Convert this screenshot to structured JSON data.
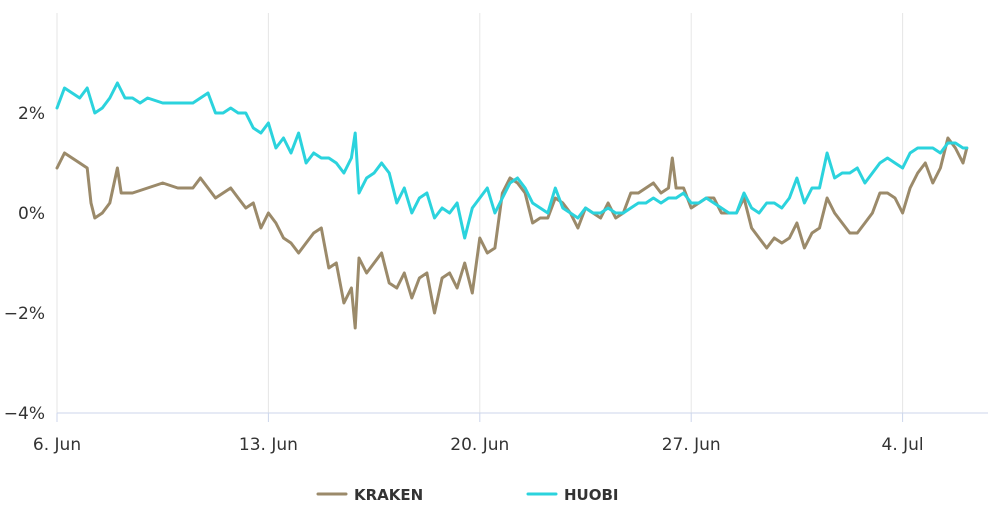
{
  "chart_data": {
    "type": "line",
    "title": "",
    "xlabel": "",
    "ylabel": "",
    "x_axis": {
      "range": [
        "2021-06-06",
        "2021-07-06"
      ],
      "ticks": [
        {
          "x": "2021-06-06",
          "label": "6. Jun"
        },
        {
          "x": "2021-06-13",
          "label": "13. Jun"
        },
        {
          "x": "2021-06-20",
          "label": "20. Jun"
        },
        {
          "x": "2021-06-27",
          "label": "27. Jun"
        },
        {
          "x": "2021-07-04",
          "label": "4. Jul"
        }
      ]
    },
    "y_axis": {
      "ylim": [
        -4,
        4
      ],
      "ticks": [
        {
          "value": -4,
          "label": "−4%"
        },
        {
          "value": -2,
          "label": "−2%"
        },
        {
          "value": 0,
          "label": "0%"
        },
        {
          "value": 2,
          "label": "2%"
        }
      ]
    },
    "grid": {
      "vertical": true,
      "horizontal": false
    },
    "legend": {
      "position": "bottom-center"
    },
    "series": [
      {
        "name": "KRAKEN",
        "color": "#9b8a6a",
        "points": [
          [
            "2021-06-06T00:00",
            0.9
          ],
          [
            "2021-06-06T06:00",
            1.2
          ],
          [
            "2021-06-06T12:00",
            1.1
          ],
          [
            "2021-06-06T18:00",
            1.0
          ],
          [
            "2021-06-07T00:00",
            0.9
          ],
          [
            "2021-06-07T03:00",
            0.2
          ],
          [
            "2021-06-07T06:00",
            -0.1
          ],
          [
            "2021-06-07T12:00",
            0.0
          ],
          [
            "2021-06-07T18:00",
            0.2
          ],
          [
            "2021-06-08T00:00",
            0.9
          ],
          [
            "2021-06-08T03:00",
            0.4
          ],
          [
            "2021-06-08T12:00",
            0.4
          ],
          [
            "2021-06-09T00:00",
            0.5
          ],
          [
            "2021-06-09T12:00",
            0.6
          ],
          [
            "2021-06-10T00:00",
            0.5
          ],
          [
            "2021-06-10T12:00",
            0.5
          ],
          [
            "2021-06-10T18:00",
            0.7
          ],
          [
            "2021-06-11T00:00",
            0.5
          ],
          [
            "2021-06-11T06:00",
            0.3
          ],
          [
            "2021-06-11T12:00",
            0.4
          ],
          [
            "2021-06-11T18:00",
            0.5
          ],
          [
            "2021-06-12T00:00",
            0.3
          ],
          [
            "2021-06-12T06:00",
            0.1
          ],
          [
            "2021-06-12T12:00",
            0.2
          ],
          [
            "2021-06-12T18:00",
            -0.3
          ],
          [
            "2021-06-13T00:00",
            0.0
          ],
          [
            "2021-06-13T06:00",
            -0.2
          ],
          [
            "2021-06-13T12:00",
            -0.5
          ],
          [
            "2021-06-13T18:00",
            -0.6
          ],
          [
            "2021-06-14T00:00",
            -0.8
          ],
          [
            "2021-06-14T06:00",
            -0.6
          ],
          [
            "2021-06-14T12:00",
            -0.4
          ],
          [
            "2021-06-14T18:00",
            -0.3
          ],
          [
            "2021-06-15T00:00",
            -1.1
          ],
          [
            "2021-06-15T06:00",
            -1.0
          ],
          [
            "2021-06-15T12:00",
            -1.8
          ],
          [
            "2021-06-15T18:00",
            -1.5
          ],
          [
            "2021-06-15T21:00",
            -2.3
          ],
          [
            "2021-06-16T00:00",
            -0.9
          ],
          [
            "2021-06-16T06:00",
            -1.2
          ],
          [
            "2021-06-16T12:00",
            -1.0
          ],
          [
            "2021-06-16T18:00",
            -0.8
          ],
          [
            "2021-06-17T00:00",
            -1.4
          ],
          [
            "2021-06-17T06:00",
            -1.5
          ],
          [
            "2021-06-17T12:00",
            -1.2
          ],
          [
            "2021-06-17T18:00",
            -1.7
          ],
          [
            "2021-06-18T00:00",
            -1.3
          ],
          [
            "2021-06-18T06:00",
            -1.2
          ],
          [
            "2021-06-18T12:00",
            -2.0
          ],
          [
            "2021-06-18T18:00",
            -1.3
          ],
          [
            "2021-06-19T00:00",
            -1.2
          ],
          [
            "2021-06-19T06:00",
            -1.5
          ],
          [
            "2021-06-19T12:00",
            -1.0
          ],
          [
            "2021-06-19T18:00",
            -1.6
          ],
          [
            "2021-06-20T00:00",
            -0.5
          ],
          [
            "2021-06-20T06:00",
            -0.8
          ],
          [
            "2021-06-20T12:00",
            -0.7
          ],
          [
            "2021-06-20T18:00",
            0.4
          ],
          [
            "2021-06-21T00:00",
            0.7
          ],
          [
            "2021-06-21T06:00",
            0.6
          ],
          [
            "2021-06-21T12:00",
            0.4
          ],
          [
            "2021-06-21T18:00",
            -0.2
          ],
          [
            "2021-06-22T00:00",
            -0.1
          ],
          [
            "2021-06-22T06:00",
            -0.1
          ],
          [
            "2021-06-22T12:00",
            0.3
          ],
          [
            "2021-06-22T18:00",
            0.2
          ],
          [
            "2021-06-23T00:00",
            0.0
          ],
          [
            "2021-06-23T06:00",
            -0.3
          ],
          [
            "2021-06-23T12:00",
            0.1
          ],
          [
            "2021-06-23T18:00",
            0.0
          ],
          [
            "2021-06-24T00:00",
            -0.1
          ],
          [
            "2021-06-24T06:00",
            0.2
          ],
          [
            "2021-06-24T12:00",
            -0.1
          ],
          [
            "2021-06-24T18:00",
            0.0
          ],
          [
            "2021-06-25T00:00",
            0.4
          ],
          [
            "2021-06-25T06:00",
            0.4
          ],
          [
            "2021-06-25T12:00",
            0.5
          ],
          [
            "2021-06-25T18:00",
            0.6
          ],
          [
            "2021-06-26T00:00",
            0.4
          ],
          [
            "2021-06-26T06:00",
            0.5
          ],
          [
            "2021-06-26T09:00",
            1.1
          ],
          [
            "2021-06-26T12:00",
            0.5
          ],
          [
            "2021-06-26T18:00",
            0.5
          ],
          [
            "2021-06-27T00:00",
            0.1
          ],
          [
            "2021-06-27T06:00",
            0.2
          ],
          [
            "2021-06-27T12:00",
            0.3
          ],
          [
            "2021-06-27T18:00",
            0.3
          ],
          [
            "2021-06-28T00:00",
            0.0
          ],
          [
            "2021-06-28T06:00",
            0.0
          ],
          [
            "2021-06-28T12:00",
            0.0
          ],
          [
            "2021-06-28T18:00",
            0.3
          ],
          [
            "2021-06-29T00:00",
            -0.3
          ],
          [
            "2021-06-29T06:00",
            -0.5
          ],
          [
            "2021-06-29T12:00",
            -0.7
          ],
          [
            "2021-06-29T18:00",
            -0.5
          ],
          [
            "2021-06-30T00:00",
            -0.6
          ],
          [
            "2021-06-30T06:00",
            -0.5
          ],
          [
            "2021-06-30T12:00",
            -0.2
          ],
          [
            "2021-06-30T18:00",
            -0.7
          ],
          [
            "2021-07-01T00:00",
            -0.4
          ],
          [
            "2021-07-01T06:00",
            -0.3
          ],
          [
            "2021-07-01T12:00",
            0.3
          ],
          [
            "2021-07-01T18:00",
            0.0
          ],
          [
            "2021-07-02T00:00",
            -0.2
          ],
          [
            "2021-07-02T06:00",
            -0.4
          ],
          [
            "2021-07-02T12:00",
            -0.4
          ],
          [
            "2021-07-02T18:00",
            -0.2
          ],
          [
            "2021-07-03T00:00",
            0.0
          ],
          [
            "2021-07-03T06:00",
            0.4
          ],
          [
            "2021-07-03T12:00",
            0.4
          ],
          [
            "2021-07-03T18:00",
            0.3
          ],
          [
            "2021-07-04T00:00",
            0.0
          ],
          [
            "2021-07-04T06:00",
            0.5
          ],
          [
            "2021-07-04T12:00",
            0.8
          ],
          [
            "2021-07-04T18:00",
            1.0
          ],
          [
            "2021-07-05T00:00",
            0.6
          ],
          [
            "2021-07-05T06:00",
            0.9
          ],
          [
            "2021-07-05T12:00",
            1.5
          ],
          [
            "2021-07-05T18:00",
            1.3
          ],
          [
            "2021-07-06T00:00",
            1.0
          ],
          [
            "2021-07-06T03:00",
            1.3
          ]
        ]
      },
      {
        "name": "HUOBI",
        "color": "#2bd3dd",
        "points": [
          [
            "2021-06-06T00:00",
            2.1
          ],
          [
            "2021-06-06T06:00",
            2.5
          ],
          [
            "2021-06-06T12:00",
            2.4
          ],
          [
            "2021-06-06T18:00",
            2.3
          ],
          [
            "2021-06-07T00:00",
            2.5
          ],
          [
            "2021-06-07T06:00",
            2.0
          ],
          [
            "2021-06-07T12:00",
            2.1
          ],
          [
            "2021-06-07T18:00",
            2.3
          ],
          [
            "2021-06-08T00:00",
            2.6
          ],
          [
            "2021-06-08T06:00",
            2.3
          ],
          [
            "2021-06-08T12:00",
            2.3
          ],
          [
            "2021-06-08T18:00",
            2.2
          ],
          [
            "2021-06-09T00:00",
            2.3
          ],
          [
            "2021-06-09T12:00",
            2.2
          ],
          [
            "2021-06-10T00:00",
            2.2
          ],
          [
            "2021-06-10T12:00",
            2.2
          ],
          [
            "2021-06-11T00:00",
            2.4
          ],
          [
            "2021-06-11T06:00",
            2.0
          ],
          [
            "2021-06-11T12:00",
            2.0
          ],
          [
            "2021-06-11T18:00",
            2.1
          ],
          [
            "2021-06-12T00:00",
            2.0
          ],
          [
            "2021-06-12T06:00",
            2.0
          ],
          [
            "2021-06-12T12:00",
            1.7
          ],
          [
            "2021-06-12T18:00",
            1.6
          ],
          [
            "2021-06-13T00:00",
            1.8
          ],
          [
            "2021-06-13T06:00",
            1.3
          ],
          [
            "2021-06-13T12:00",
            1.5
          ],
          [
            "2021-06-13T18:00",
            1.2
          ],
          [
            "2021-06-14T00:00",
            1.6
          ],
          [
            "2021-06-14T06:00",
            1.0
          ],
          [
            "2021-06-14T12:00",
            1.2
          ],
          [
            "2021-06-14T18:00",
            1.1
          ],
          [
            "2021-06-15T00:00",
            1.1
          ],
          [
            "2021-06-15T06:00",
            1.0
          ],
          [
            "2021-06-15T12:00",
            0.8
          ],
          [
            "2021-06-15T18:00",
            1.1
          ],
          [
            "2021-06-15T21:00",
            1.6
          ],
          [
            "2021-06-16T00:00",
            0.4
          ],
          [
            "2021-06-16T06:00",
            0.7
          ],
          [
            "2021-06-16T12:00",
            0.8
          ],
          [
            "2021-06-16T18:00",
            1.0
          ],
          [
            "2021-06-17T00:00",
            0.8
          ],
          [
            "2021-06-17T06:00",
            0.2
          ],
          [
            "2021-06-17T12:00",
            0.5
          ],
          [
            "2021-06-17T18:00",
            0.0
          ],
          [
            "2021-06-18T00:00",
            0.3
          ],
          [
            "2021-06-18T06:00",
            0.4
          ],
          [
            "2021-06-18T12:00",
            -0.1
          ],
          [
            "2021-06-18T18:00",
            0.1
          ],
          [
            "2021-06-19T00:00",
            0.0
          ],
          [
            "2021-06-19T06:00",
            0.2
          ],
          [
            "2021-06-19T12:00",
            -0.5
          ],
          [
            "2021-06-19T18:00",
            0.1
          ],
          [
            "2021-06-20T00:00",
            0.3
          ],
          [
            "2021-06-20T06:00",
            0.5
          ],
          [
            "2021-06-20T12:00",
            0.0
          ],
          [
            "2021-06-20T18:00",
            0.3
          ],
          [
            "2021-06-21T00:00",
            0.6
          ],
          [
            "2021-06-21T06:00",
            0.7
          ],
          [
            "2021-06-21T12:00",
            0.5
          ],
          [
            "2021-06-21T18:00",
            0.2
          ],
          [
            "2021-06-22T00:00",
            0.1
          ],
          [
            "2021-06-22T06:00",
            0.0
          ],
          [
            "2021-06-22T12:00",
            0.5
          ],
          [
            "2021-06-22T18:00",
            0.1
          ],
          [
            "2021-06-23T00:00",
            0.0
          ],
          [
            "2021-06-23T06:00",
            -0.1
          ],
          [
            "2021-06-23T12:00",
            0.1
          ],
          [
            "2021-06-23T18:00",
            0.0
          ],
          [
            "2021-06-24T00:00",
            0.0
          ],
          [
            "2021-06-24T06:00",
            0.1
          ],
          [
            "2021-06-24T12:00",
            0.0
          ],
          [
            "2021-06-24T18:00",
            0.0
          ],
          [
            "2021-06-25T00:00",
            0.1
          ],
          [
            "2021-06-25T06:00",
            0.2
          ],
          [
            "2021-06-25T12:00",
            0.2
          ],
          [
            "2021-06-25T18:00",
            0.3
          ],
          [
            "2021-06-26T00:00",
            0.2
          ],
          [
            "2021-06-26T06:00",
            0.3
          ],
          [
            "2021-06-26T12:00",
            0.3
          ],
          [
            "2021-06-26T18:00",
            0.4
          ],
          [
            "2021-06-27T00:00",
            0.2
          ],
          [
            "2021-06-27T06:00",
            0.2
          ],
          [
            "2021-06-27T12:00",
            0.3
          ],
          [
            "2021-06-27T18:00",
            0.2
          ],
          [
            "2021-06-28T00:00",
            0.1
          ],
          [
            "2021-06-28T06:00",
            0.0
          ],
          [
            "2021-06-28T12:00",
            0.0
          ],
          [
            "2021-06-28T18:00",
            0.4
          ],
          [
            "2021-06-29T00:00",
            0.1
          ],
          [
            "2021-06-29T06:00",
            0.0
          ],
          [
            "2021-06-29T12:00",
            0.2
          ],
          [
            "2021-06-29T18:00",
            0.2
          ],
          [
            "2021-06-30T00:00",
            0.1
          ],
          [
            "2021-06-30T06:00",
            0.3
          ],
          [
            "2021-06-30T12:00",
            0.7
          ],
          [
            "2021-06-30T18:00",
            0.2
          ],
          [
            "2021-07-01T00:00",
            0.5
          ],
          [
            "2021-07-01T06:00",
            0.5
          ],
          [
            "2021-07-01T12:00",
            1.2
          ],
          [
            "2021-07-01T18:00",
            0.7
          ],
          [
            "2021-07-02T00:00",
            0.8
          ],
          [
            "2021-07-02T06:00",
            0.8
          ],
          [
            "2021-07-02T12:00",
            0.9
          ],
          [
            "2021-07-02T18:00",
            0.6
          ],
          [
            "2021-07-03T00:00",
            0.8
          ],
          [
            "2021-07-03T06:00",
            1.0
          ],
          [
            "2021-07-03T12:00",
            1.1
          ],
          [
            "2021-07-03T18:00",
            1.0
          ],
          [
            "2021-07-04T00:00",
            0.9
          ],
          [
            "2021-07-04T06:00",
            1.2
          ],
          [
            "2021-07-04T12:00",
            1.3
          ],
          [
            "2021-07-04T18:00",
            1.3
          ],
          [
            "2021-07-05T00:00",
            1.3
          ],
          [
            "2021-07-05T06:00",
            1.2
          ],
          [
            "2021-07-05T12:00",
            1.4
          ],
          [
            "2021-07-05T18:00",
            1.4
          ],
          [
            "2021-07-06T00:00",
            1.3
          ],
          [
            "2021-07-06T03:00",
            1.3
          ]
        ]
      }
    ]
  }
}
